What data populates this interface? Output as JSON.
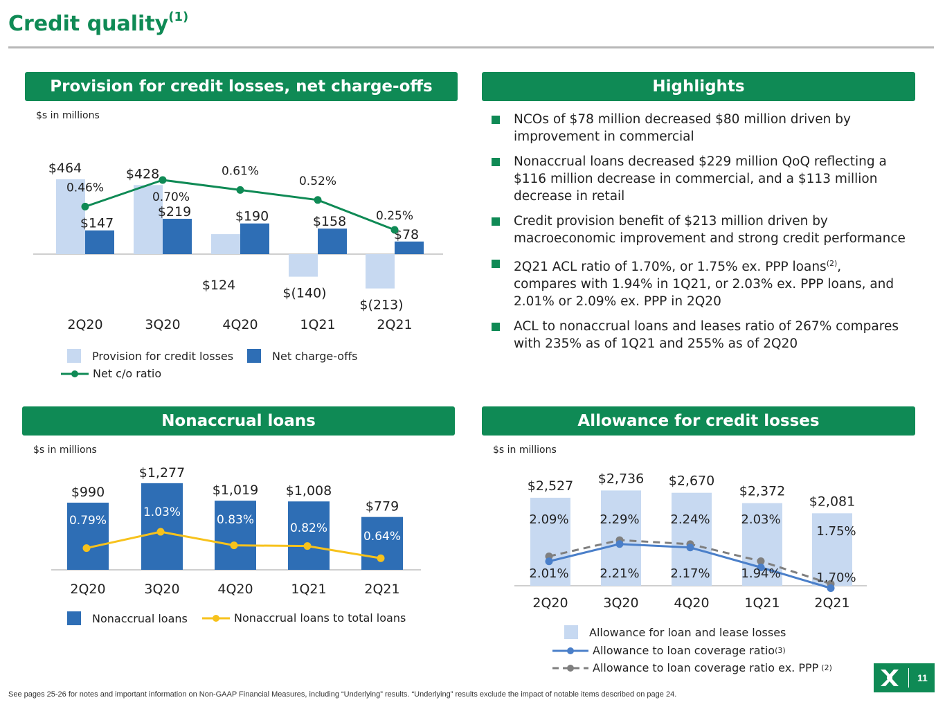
{
  "page": {
    "title": "Credit quality",
    "title_sup": "(1)",
    "footnote": "See pages 25-26 for notes and important information on Non-GAAP Financial Measures, including “Underlying” results. “Underlying” results exclude the impact of notable items described on page 24.",
    "page_number": "11"
  },
  "colors": {
    "green": "#0f8a55",
    "light_blue": "#c7d9f1",
    "dark_blue": "#2e6eb5",
    "line_blue": "#4a7fc9",
    "gold": "#f7c21c",
    "gray": "#7f7f7f"
  },
  "panels": {
    "provision_title": "Provision for credit losses, net charge-offs",
    "highlights_title": "Highlights",
    "nonaccrual_title": "Nonaccrual loans",
    "allowance_title": "Allowance for credit losses",
    "units_note": "$s in millions"
  },
  "highlights": [
    {
      "text": "NCOs of $78 million decreased $80 million driven by improvement in commercial"
    },
    {
      "text": "Nonaccrual loans decreased $229 million QoQ reflecting a $116 million decrease in commercial, and a $113 million decrease in retail"
    },
    {
      "text": "Credit provision benefit of $213 million driven by macroeconomic improvement and strong credit performance"
    },
    {
      "text_a": "2Q21 ACL ratio of 1.70%, or 1.75% ex. PPP loans",
      "sup": "(2)",
      "text_b": ", compares with 1.94% in 1Q21, or 2.03% ex. PPP loans, and 2.01% or 2.09% ex. PPP in 2Q20"
    },
    {
      "text": "ACL to nonaccrual loans and leases ratio of 267% compares with 235% as of 1Q21 and 255% as of 2Q20"
    }
  ],
  "chart_data": [
    {
      "type": "bar",
      "title": "Provision for credit losses, net charge-offs",
      "categories": [
        "2Q20",
        "3Q20",
        "4Q20",
        "1Q21",
        "2Q21"
      ],
      "series": [
        {
          "name": "Provision for credit losses",
          "values": [
            464,
            428,
            124,
            -140,
            -213
          ],
          "labels": [
            "$464",
            "$428",
            "$124",
            "$(140)",
            "$(213)"
          ]
        },
        {
          "name": "Net charge-offs",
          "values": [
            147,
            219,
            190,
            158,
            78
          ],
          "labels": [
            "$147",
            "$219",
            "$190",
            "$158",
            "$78"
          ]
        },
        {
          "name": "Net c/o ratio",
          "type": "line",
          "values": [
            0.46,
            0.7,
            0.61,
            0.52,
            0.25
          ],
          "labels": [
            "0.46%",
            "0.70%",
            "0.61%",
            "0.52%",
            "0.25%"
          ]
        }
      ],
      "legend": "bottom"
    },
    {
      "type": "bar",
      "title": "Nonaccrual loans",
      "categories": [
        "2Q20",
        "3Q20",
        "4Q20",
        "1Q21",
        "2Q21"
      ],
      "series": [
        {
          "name": "Nonaccrual loans",
          "values": [
            990,
            1277,
            1019,
            1008,
            779
          ],
          "labels": [
            "$990",
            "$1,277",
            "$1,019",
            "$1,008",
            "$779"
          ]
        },
        {
          "name": "Nonaccrual loans to total loans",
          "type": "line",
          "values": [
            0.79,
            1.03,
            0.83,
            0.82,
            0.64
          ],
          "labels": [
            "0.79%",
            "1.03%",
            "0.83%",
            "0.82%",
            "0.64%"
          ]
        }
      ],
      "legend": "bottom"
    },
    {
      "type": "bar",
      "title": "Allowance for credit losses",
      "categories": [
        "2Q20",
        "3Q20",
        "4Q20",
        "1Q21",
        "2Q21"
      ],
      "series": [
        {
          "name": "Allowance for loan and lease losses",
          "values": [
            2527,
            2736,
            2670,
            2372,
            2081
          ],
          "labels": [
            "$2,527",
            "$2,736",
            "$2,670",
            "$2,372",
            "$2,081"
          ]
        },
        {
          "name": "Allowance to loan coverage ratio",
          "name_sup": "(3)",
          "type": "line",
          "values": [
            2.01,
            2.21,
            2.17,
            1.94,
            1.7
          ],
          "labels": [
            "2.01%",
            "2.21%",
            "2.17%",
            "1.94%",
            "1.70%"
          ]
        },
        {
          "name": "Allowance to loan coverage ratio ex. PPP",
          "name_sup": "(2)",
          "type": "line",
          "dashed": true,
          "values": [
            2.09,
            2.29,
            2.24,
            2.03,
            1.75
          ],
          "labels": [
            "2.09%",
            "2.29%",
            "2.24%",
            "2.03%",
            "1.75%"
          ]
        }
      ],
      "legend": "bottom"
    }
  ]
}
